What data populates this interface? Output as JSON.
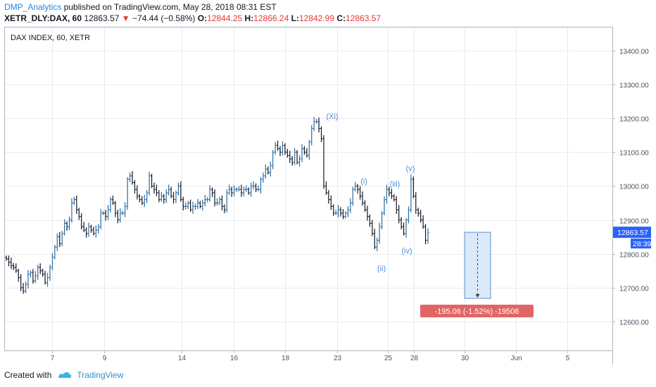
{
  "header": {
    "author": "DMP_Analytics",
    "published_text": " published on TradingView.com, May 28, 2018 08:31 EST",
    "symbol": "XETR_DLY:DAX, 60",
    "last": "12863.57",
    "change_arrow": "▼",
    "change": "−74.44 (−0.58%)",
    "open_label": "O:",
    "open": "12844.25",
    "high_label": "H:",
    "high": "12866.24",
    "low_label": "L:",
    "low": "12842.99",
    "close_label": "C:",
    "close": "12863.57"
  },
  "chart_data": {
    "type": "bar",
    "title": "DAX INDEX, 60, XETR",
    "x_ticks": [
      "7",
      "9",
      "14",
      "16",
      "18",
      "23",
      "25",
      "28",
      "30",
      "Jun",
      "5"
    ],
    "y_ticks": [
      "13400.00",
      "13300.00",
      "13200.00",
      "13100.00",
      "13000.00",
      "12900.00",
      "12800.00",
      "12700.00",
      "12600.00"
    ],
    "ylim": [
      12515,
      13470
    ],
    "grid": true,
    "price_label": "12863.57",
    "countdown": "28:39",
    "waves": [
      "(Xi)",
      "(i)",
      "(ii)",
      "(iii)",
      "(iv)",
      "(v)"
    ],
    "projection": {
      "from": 12863.57,
      "to": 12668.51,
      "label": "-195.06 (-1.52%) -19506"
    },
    "bullish_color": "#2b6ca3",
    "bearish_color": "#131722",
    "hourly_closes": [
      12785,
      12775,
      12765,
      12760,
      12750,
      12730,
      12700,
      12690,
      12710,
      12740,
      12745,
      12720,
      12735,
      12760,
      12750,
      12740,
      12715,
      12730,
      12760,
      12790,
      12820,
      12850,
      12830,
      12860,
      12890,
      12880,
      12900,
      12950,
      12960,
      12930,
      12910,
      12880,
      12870,
      12860,
      12880,
      12870,
      12860,
      12870,
      12880,
      12920,
      12920,
      12910,
      12930,
      12960,
      12950,
      12920,
      12900,
      12920,
      12920,
      12940,
      13020,
      13030,
      13010,
      12990,
      12970,
      12960,
      12950,
      12960,
      12980,
      13030,
      13000,
      12990,
      12980,
      12960,
      12970,
      12960,
      12980,
      12990,
      12970,
      12960,
      12980,
      13000,
      12960,
      12940,
      12940,
      12950,
      12930,
      12940,
      12940,
      12950,
      12940,
      12950,
      12960,
      12960,
      12990,
      12980,
      12950,
      12950,
      12960,
      12940,
      12930,
      12980,
      12990,
      12980,
      12990,
      12990,
      12990,
      12980,
      12990,
      12990,
      12980,
      13000,
      13000,
      12990,
      12990,
      13020,
      13030,
      13050,
      13040,
      13060,
      13100,
      13120,
      13110,
      13100,
      13120,
      13100,
      13090,
      13080,
      13070,
      13100,
      13070,
      13080,
      13110,
      13100,
      13090,
      13130,
      13170,
      13190,
      13190,
      13170,
      13140,
      13000,
      12980,
      12960,
      12940,
      12920,
      12920,
      12930,
      12920,
      12910,
      12920,
      12930,
      12950,
      12990,
      13000,
      12990,
      12970,
      12950,
      12930,
      12910,
      12890,
      12860,
      12820,
      12840,
      12880,
      12920,
      12960,
      12990,
      12980,
      12970,
      12960,
      12930,
      12900,
      12880,
      12860,
      12900,
      12930,
      13020,
      12970,
      12930,
      12920,
      12900,
      12880,
      12840,
      12863
    ]
  }
}
